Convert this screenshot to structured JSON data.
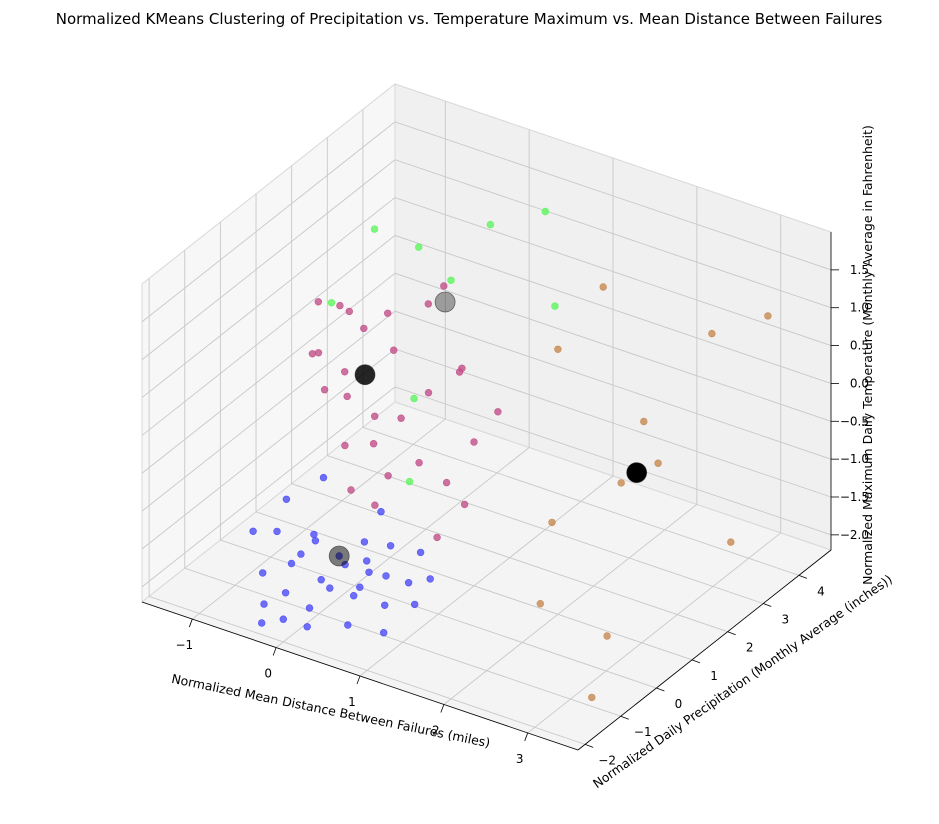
{
  "chart_data": {
    "type": "scatter",
    "title": "Normalized KMeans Clustering of Precipitation vs. Temperature Maximum vs. Mean Distance Between Failures",
    "xlabel": "Normalized Mean Distance Between Failures (miles)",
    "ylabel": "Normalized Daily Precipitation (Monthly Average (inches))",
    "zlabel": "Normalized Maximum Daily Temperature (Monthly Average in Fahrenheit)",
    "xlim": [
      -1.6,
      3.6
    ],
    "ylim": [
      -2.2,
      4.9
    ],
    "zlim": [
      -2.2,
      2.0
    ],
    "x_ticks": [
      -1,
      0,
      1,
      2,
      3
    ],
    "y_ticks": [
      -2,
      -1,
      0,
      1,
      2,
      3,
      4
    ],
    "z_ticks": [
      -2.0,
      -1.5,
      -1.0,
      -0.5,
      0.0,
      0.5,
      1.0,
      1.5
    ],
    "z_tick_labels": [
      "−2.0",
      "−1.5",
      "−1.0",
      "−0.5",
      "0.0",
      "0.5",
      "1.0",
      "1.5"
    ],
    "x_tick_labels": [
      "−1",
      "0",
      "1",
      "2",
      "3"
    ],
    "y_tick_labels": [
      "−2",
      "−1",
      "0",
      "1",
      "2",
      "3",
      "4"
    ],
    "grid": true,
    "series_colors": {
      "blue": "#4b4bf5",
      "magenta": "#c2508a",
      "green": "#5cf55c",
      "orange": "#c78a50",
      "centroid": "#000000"
    },
    "series": [
      {
        "color_key": "blue",
        "points": [
          [
            -0.5,
            -1.0,
            -1.3
          ],
          [
            -0.3,
            -0.8,
            -1.6
          ],
          [
            -0.1,
            -0.7,
            -1.9
          ],
          [
            0.1,
            -0.5,
            -1.7
          ],
          [
            0.3,
            -0.3,
            -1.8
          ],
          [
            -0.2,
            -1.3,
            -1.5
          ],
          [
            0.0,
            -1.1,
            -1.2
          ],
          [
            0.2,
            -0.9,
            -1.4
          ],
          [
            0.4,
            -0.6,
            -1.5
          ],
          [
            0.6,
            -0.4,
            -1.3
          ],
          [
            -0.4,
            -0.2,
            -1.6
          ],
          [
            -0.6,
            -0.5,
            -1.1
          ],
          [
            0.5,
            -1.2,
            -1.7
          ],
          [
            0.7,
            -0.8,
            -1.9
          ],
          [
            0.9,
            -0.6,
            -1.6
          ],
          [
            0.1,
            -1.5,
            -1.9
          ],
          [
            0.3,
            -1.4,
            -1.6
          ],
          [
            -0.1,
            -1.7,
            -1.7
          ],
          [
            0.8,
            -1.0,
            -1.4
          ],
          [
            1.0,
            -0.5,
            -1.2
          ],
          [
            -0.3,
            -1.9,
            -2.1
          ],
          [
            0.0,
            -2.0,
            -1.9
          ],
          [
            0.2,
            -1.8,
            -2.0
          ],
          [
            0.6,
            -1.6,
            -1.9
          ],
          [
            1.1,
            -0.9,
            -1.7
          ],
          [
            -0.5,
            -1.4,
            -1.7
          ],
          [
            -0.7,
            -1.2,
            -1.3
          ],
          [
            0.4,
            -0.2,
            -1.0
          ],
          [
            0.9,
            -1.3,
            -2.0
          ],
          [
            1.2,
            -0.7,
            -1.4
          ],
          [
            -0.2,
            -0.4,
            -0.7
          ],
          [
            0.5,
            -0.9,
            -1.1
          ],
          [
            0.7,
            -1.5,
            -1.4
          ],
          [
            -0.4,
            -1.6,
            -2.0
          ]
        ]
      },
      {
        "color_key": "magenta",
        "points": [
          [
            -0.6,
            1.0,
            0.9
          ],
          [
            -0.4,
            1.2,
            0.6
          ],
          [
            -0.2,
            1.4,
            0.8
          ],
          [
            0.0,
            1.1,
            0.5
          ],
          [
            0.2,
            1.6,
            1.0
          ],
          [
            -0.8,
            0.7,
            0.3
          ],
          [
            -0.5,
            0.9,
            0.1
          ],
          [
            -0.3,
            0.5,
            0.0
          ],
          [
            -0.1,
            0.8,
            -0.3
          ],
          [
            0.1,
            0.3,
            -0.4
          ],
          [
            0.3,
            0.6,
            -0.1
          ],
          [
            0.5,
            0.9,
            0.2
          ],
          [
            0.7,
            1.3,
            0.4
          ],
          [
            -0.7,
            1.5,
            0.6
          ],
          [
            -0.9,
            1.1,
            0.8
          ],
          [
            0.4,
            0.0,
            -0.6
          ],
          [
            0.6,
            0.4,
            -0.5
          ],
          [
            0.8,
            0.7,
            -0.8
          ],
          [
            1.0,
            1.0,
            -0.3
          ],
          [
            1.2,
            1.2,
            0.1
          ],
          [
            -0.2,
            0.2,
            -0.5
          ],
          [
            0.0,
            -0.1,
            -0.9
          ],
          [
            0.2,
            0.1,
            -1.1
          ],
          [
            0.9,
            0.2,
            -1.3
          ],
          [
            1.1,
            0.5,
            -0.9
          ],
          [
            -0.6,
            0.4,
            0.5
          ],
          [
            -0.4,
            0.1,
            0.2
          ],
          [
            0.3,
            1.8,
            1.2
          ],
          [
            0.6,
            1.6,
            0.3
          ]
        ]
      },
      {
        "color_key": "green",
        "points": [
          [
            -0.4,
            1.5,
            1.8
          ],
          [
            0.0,
            1.8,
            1.6
          ],
          [
            0.3,
            2.0,
            1.2
          ],
          [
            0.6,
            2.4,
            1.9
          ],
          [
            1.0,
            3.0,
            2.0
          ],
          [
            -0.7,
            1.0,
            0.9
          ],
          [
            0.2,
            1.2,
            -0.1
          ],
          [
            1.2,
            2.8,
            0.9
          ],
          [
            0.4,
            0.6,
            -0.9
          ]
        ]
      },
      {
        "color_key": "orange",
        "points": [
          [
            2.2,
            1.8,
            1.9
          ],
          [
            2.0,
            1.0,
            1.3
          ],
          [
            3.2,
            2.5,
            1.4
          ],
          [
            2.6,
            2.0,
            0.2
          ],
          [
            3.4,
            3.6,
            1.3
          ],
          [
            2.6,
            2.4,
            -0.5
          ],
          [
            2.5,
            1.6,
            -0.5
          ],
          [
            2.1,
            0.6,
            -0.8
          ],
          [
            2.8,
            0.5,
            -2.0
          ],
          [
            3.0,
            3.5,
            -1.8
          ],
          [
            2.3,
            -0.2,
            -1.5
          ],
          [
            3.0,
            -0.4,
            -2.4
          ]
        ]
      }
    ],
    "centroids": [
      {
        "x": -0.3,
        "y": 1.0,
        "z": 0.1,
        "shade": "#000000",
        "opacity": 0.85
      },
      {
        "x": 0.4,
        "y": 1.6,
        "z": 1.1,
        "shade": "#000000",
        "opacity": 0.35
      },
      {
        "x": 0.2,
        "y": -0.9,
        "z": -1.4,
        "shade": "#000000",
        "opacity": 0.5
      },
      {
        "x": 2.6,
        "y": 1.8,
        "z": -0.4,
        "shade": "#000000",
        "opacity": 1.0
      }
    ]
  }
}
